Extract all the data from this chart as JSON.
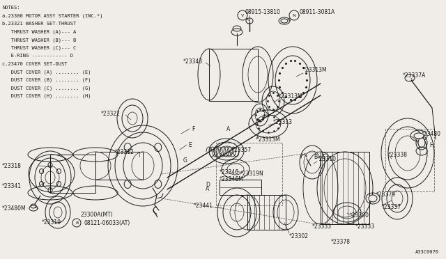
{
  "bg_color": "#f0ede8",
  "line_color": "#1a1a1a",
  "text_color": "#1a1a1a",
  "diagram_code": "A33C0070",
  "figsize": [
    6.4,
    3.72
  ],
  "dpi": 100,
  "notes_lines": [
    "NOTES:",
    "a.23300 MOTOR ASSY STARTER (INC.*)",
    "b.23321 WASHER SET-THRUST",
    "   THRUST WASHER (A)--- A",
    "   THRUST WASHER (B)--- B",
    "   THRUST WASHER (C)--- C",
    "   E-RING ------------ D",
    "c.23470 COVER SET-DUST",
    "   DUST COVER (A) ........ (E)",
    "   DUST COVER (B) ........ (F)",
    "   DUST COVER (C) ........ (G)",
    "   DUST COVER (H) ........ (H)"
  ]
}
